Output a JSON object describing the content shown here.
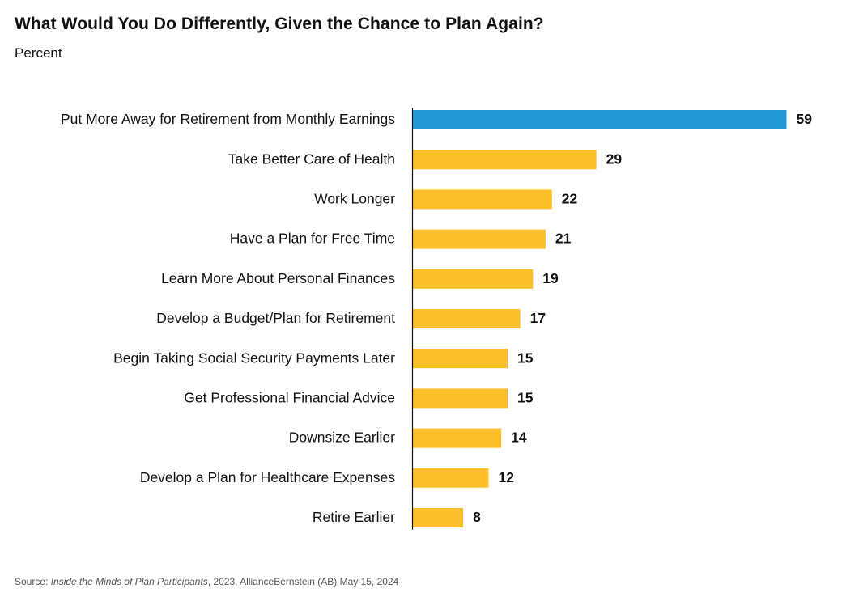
{
  "colors": {
    "highlight": "#2399d6",
    "bar": "#fdbe2b",
    "axis": "#111111",
    "text": "#111111",
    "source": "#555555"
  },
  "chart_data": {
    "type": "bar",
    "orientation": "horizontal",
    "title": "What Would You Do Differently, Given the Chance to Plan Again?",
    "subtitle": "Percent",
    "categories": [
      "Put More Away for Retirement from Monthly Earnings",
      "Take Better Care of Health",
      "Work Longer",
      "Have a Plan for Free Time",
      "Learn More About Personal Finances",
      "Develop a Budget/Plan for Retirement",
      "Begin Taking Social Security Payments Later",
      "Get Professional Financial Advice",
      "Downsize Earlier",
      "Develop a Plan for Healthcare Expenses",
      "Retire Earlier"
    ],
    "values": [
      59,
      29,
      22,
      21,
      19,
      17,
      15,
      15,
      14,
      12,
      8
    ],
    "highlight_index": 0,
    "data_labels": true,
    "grid": false,
    "legend": "none",
    "xlim": [
      0,
      59
    ]
  },
  "source": {
    "prefix": "Source: ",
    "title": "Inside the Minds of Plan Participants",
    "suffix": ", 2023, AllianceBernstein (AB) May 15, 2024"
  }
}
